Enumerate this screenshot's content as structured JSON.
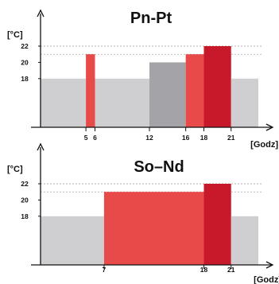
{
  "colors": {
    "comfort": "#e84a4a",
    "comfort_high": "#c8192a",
    "eco": "#cfcfd2",
    "eco_dark": "#a3a3a8",
    "axis": "#111111",
    "grid": "#999999"
  },
  "chart_data": [
    {
      "type": "bar",
      "title": "Pn-Pt",
      "ylabel": "[°C]",
      "xlabel": "[Godz]",
      "xlim": [
        0,
        24
      ],
      "ylim": [
        12,
        24
      ],
      "x_ticks": [
        5,
        6,
        12,
        16,
        18,
        21
      ],
      "y_ticks": [
        18,
        20,
        22
      ],
      "gridlines_y": [
        21,
        22
      ],
      "segments": [
        {
          "start": 0,
          "end": 5,
          "value": 18,
          "color": "eco"
        },
        {
          "start": 5,
          "end": 6,
          "value": 21,
          "color": "comfort"
        },
        {
          "start": 6,
          "end": 12,
          "value": 18,
          "color": "eco"
        },
        {
          "start": 12,
          "end": 16,
          "value": 20,
          "color": "eco_dark"
        },
        {
          "start": 16,
          "end": 18,
          "value": 21,
          "color": "comfort"
        },
        {
          "start": 18,
          "end": 21,
          "value": 22,
          "color": "comfort_high"
        },
        {
          "start": 21,
          "end": 24,
          "value": 18,
          "color": "eco"
        }
      ]
    },
    {
      "type": "bar",
      "title": "So–Nd",
      "ylabel": "[°C]",
      "xlabel": "[Godz]",
      "xlim": [
        0,
        24
      ],
      "ylim": [
        12,
        24
      ],
      "x_ticks": [
        7,
        18,
        21
      ],
      "y_ticks": [
        18,
        20,
        22
      ],
      "gridlines_y": [
        21,
        22
      ],
      "segments": [
        {
          "start": 0,
          "end": 7,
          "value": 18,
          "color": "eco"
        },
        {
          "start": 7,
          "end": 18,
          "value": 21,
          "color": "comfort"
        },
        {
          "start": 18,
          "end": 21,
          "value": 22,
          "color": "comfort_high"
        },
        {
          "start": 21,
          "end": 24,
          "value": 18,
          "color": "eco"
        }
      ]
    }
  ]
}
